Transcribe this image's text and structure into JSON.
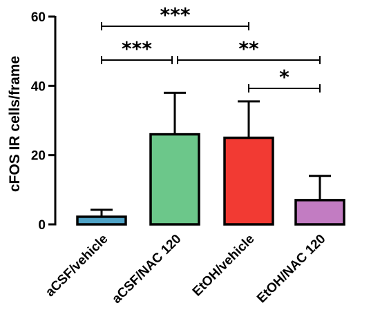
{
  "chart_data": {
    "type": "bar",
    "title": "",
    "ylabel": "cFOS IR cells/frame",
    "xlabel": "",
    "ylim": [
      0,
      60
    ],
    "yticks": [
      0,
      20,
      40,
      60
    ],
    "categories": [
      "aCSF/vehicle",
      "aCSF/NAC 120",
      "EtOH/vehicle",
      "EtOH/NAC 120"
    ],
    "values": [
      2.2,
      26.0,
      25.0,
      7.0
    ],
    "error_upper": [
      4.2,
      38.0,
      35.5,
      14.0
    ],
    "colors": [
      "#4fa3c7",
      "#6cc78a",
      "#f23a33",
      "#c27cc2"
    ],
    "grid": false,
    "significance": [
      {
        "from": 0,
        "to": 2,
        "label": "***"
      },
      {
        "from": 0,
        "to": 1,
        "label": "***"
      },
      {
        "from": 1,
        "to": 3,
        "label": "**"
      },
      {
        "from": 2,
        "to": 3,
        "label": "*"
      }
    ]
  }
}
